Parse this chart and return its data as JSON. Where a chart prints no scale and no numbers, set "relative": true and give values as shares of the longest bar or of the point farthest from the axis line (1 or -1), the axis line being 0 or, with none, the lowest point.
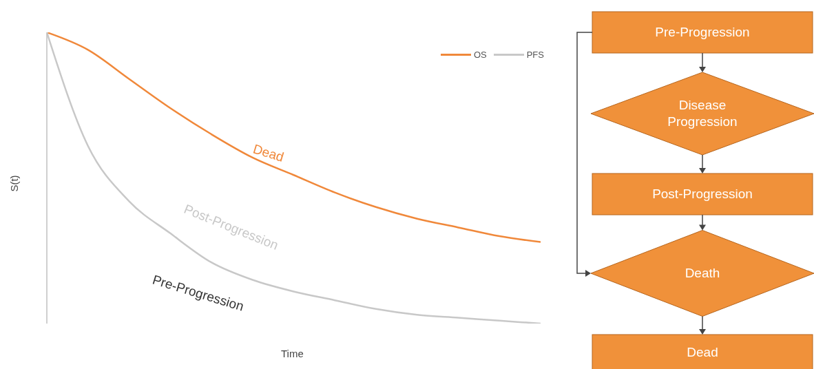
{
  "chart_data": [
    {
      "type": "line",
      "relative": true,
      "xlabel": "Time",
      "ylabel": "S(t)",
      "legend": "top right",
      "categories": [
        null,
        null,
        null,
        null,
        null,
        null,
        null,
        null,
        null,
        null,
        null,
        null,
        null
      ],
      "series": [
        {
          "name": "OS",
          "color": "#f0883a",
          "values": [
            1,
            0.94,
            0.84,
            0.74,
            0.65,
            0.57,
            0.51,
            0.45,
            0.4,
            0.36,
            0.33,
            0.3,
            0.28
          ]
        },
        {
          "name": "PFS",
          "color": "#c8c8c8",
          "values": [
            1,
            0.61,
            0.42,
            0.31,
            0.21,
            0.15,
            0.11,
            0.08,
            0.05,
            0.03,
            0.02,
            0.01,
            0
          ]
        }
      ],
      "annotations": [
        "Dead",
        "Post-Progression",
        "Pre-Progression"
      ]
    },
    {
      "type": "other",
      "annotations": [
        "Pre-Progression",
        "Disease Progression",
        "Post-Progression",
        "Death",
        "Dead"
      ]
    }
  ]
}
